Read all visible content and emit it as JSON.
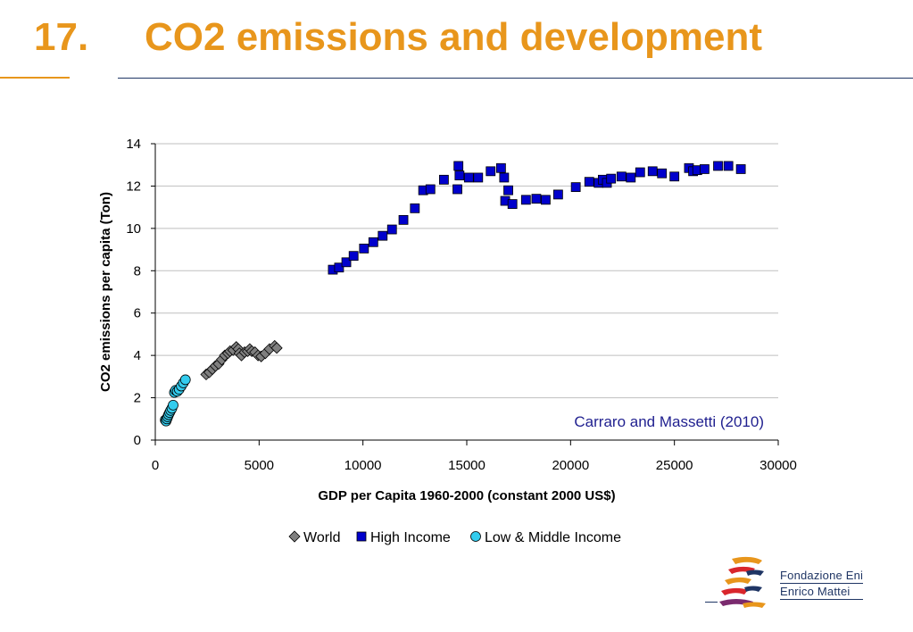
{
  "slide": {
    "number": "17.",
    "title": "CO2 emissions and development",
    "accent_color": "#E8961C",
    "rule_color": "#1F3564"
  },
  "chart_data": {
    "type": "scatter",
    "xlabel": "GDP per Capita 1960-2000 (constant 2000 US$)",
    "ylabel": "CO2 emissions per capita (Ton)",
    "xlim": [
      0,
      30000
    ],
    "ylim": [
      0,
      14
    ],
    "x_ticks": [
      0,
      5000,
      10000,
      15000,
      20000,
      25000,
      30000
    ],
    "y_ticks": [
      0,
      2,
      4,
      6,
      8,
      10,
      12,
      14
    ],
    "grid": "horizontal",
    "legend_position": "bottom",
    "annotation": "Carraro and Massetti (2010)",
    "series": [
      {
        "name": "World",
        "marker": "diamond",
        "color": "#7F7F7F",
        "points": [
          [
            2450,
            3.1
          ],
          [
            2600,
            3.2
          ],
          [
            2750,
            3.35
          ],
          [
            2900,
            3.5
          ],
          [
            3050,
            3.6
          ],
          [
            3200,
            3.8
          ],
          [
            3350,
            4.0
          ],
          [
            3500,
            4.1
          ],
          [
            3600,
            4.2
          ],
          [
            3750,
            4.25
          ],
          [
            3900,
            4.4
          ],
          [
            4000,
            4.3
          ],
          [
            4050,
            4.1
          ],
          [
            4150,
            4.0
          ],
          [
            4300,
            4.15
          ],
          [
            4450,
            4.2
          ],
          [
            4550,
            4.3
          ],
          [
            4650,
            4.2
          ],
          [
            4800,
            4.15
          ],
          [
            4950,
            4.0
          ],
          [
            5100,
            3.95
          ],
          [
            5300,
            4.1
          ],
          [
            5500,
            4.3
          ],
          [
            5750,
            4.45
          ],
          [
            5850,
            4.35
          ]
        ]
      },
      {
        "name": "High Income",
        "marker": "square",
        "color": "#0000CC",
        "points": [
          [
            8550,
            8.05
          ],
          [
            8850,
            8.15
          ],
          [
            9200,
            8.4
          ],
          [
            9550,
            8.7
          ],
          [
            10050,
            9.05
          ],
          [
            10500,
            9.35
          ],
          [
            10950,
            9.65
          ],
          [
            11400,
            9.95
          ],
          [
            11950,
            10.4
          ],
          [
            12500,
            10.95
          ],
          [
            12900,
            11.8
          ],
          [
            13250,
            11.85
          ],
          [
            13900,
            12.3
          ],
          [
            14550,
            11.85
          ],
          [
            14600,
            12.95
          ],
          [
            14650,
            12.5
          ],
          [
            15100,
            12.4
          ],
          [
            15550,
            12.4
          ],
          [
            16150,
            12.7
          ],
          [
            16650,
            12.85
          ],
          [
            16800,
            12.4
          ],
          [
            16850,
            11.3
          ],
          [
            17000,
            11.8
          ],
          [
            17200,
            11.15
          ],
          [
            17850,
            11.35
          ],
          [
            18350,
            11.4
          ],
          [
            18800,
            11.35
          ],
          [
            19400,
            11.6
          ],
          [
            20250,
            11.95
          ],
          [
            20900,
            12.2
          ],
          [
            21350,
            12.15
          ],
          [
            21550,
            12.3
          ],
          [
            21750,
            12.15
          ],
          [
            21950,
            12.35
          ],
          [
            22450,
            12.45
          ],
          [
            22900,
            12.4
          ],
          [
            23350,
            12.65
          ],
          [
            23950,
            12.7
          ],
          [
            24400,
            12.6
          ],
          [
            25000,
            12.45
          ],
          [
            25700,
            12.85
          ],
          [
            25900,
            12.7
          ],
          [
            26100,
            12.75
          ],
          [
            26450,
            12.8
          ],
          [
            27100,
            12.95
          ],
          [
            27600,
            12.95
          ],
          [
            28200,
            12.8
          ]
        ]
      },
      {
        "name": "Low & Middle Income",
        "marker": "circle",
        "color": "#33CCEE",
        "points": [
          [
            480,
            0.95
          ],
          [
            520,
            0.9
          ],
          [
            560,
            1.0
          ],
          [
            600,
            1.1
          ],
          [
            640,
            1.2
          ],
          [
            690,
            1.3
          ],
          [
            740,
            1.4
          ],
          [
            800,
            1.5
          ],
          [
            860,
            1.65
          ],
          [
            920,
            2.25
          ],
          [
            980,
            2.35
          ],
          [
            1060,
            2.3
          ],
          [
            1150,
            2.4
          ],
          [
            1250,
            2.55
          ],
          [
            1350,
            2.7
          ],
          [
            1450,
            2.85
          ]
        ]
      }
    ]
  },
  "logo": {
    "line1": "Fondazione Eni",
    "line2": "Enrico Mattei"
  }
}
